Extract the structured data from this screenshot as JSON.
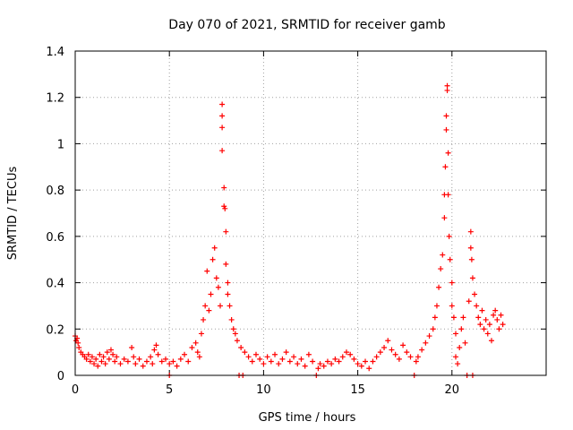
{
  "chart_data": {
    "type": "scatter",
    "title": "Day 070 of 2021, SRMTID for receiver gamb",
    "xlabel": "GPS time / hours",
    "ylabel": "SRMTID / TECUs",
    "xlim": [
      0,
      25
    ],
    "ylim": [
      0,
      1.4
    ],
    "x_ticks": [
      0,
      5,
      10,
      15,
      20
    ],
    "x_tick_labels": [
      "0",
      "5",
      "10",
      "15",
      "20"
    ],
    "y_ticks": [
      0,
      0.2,
      0.4,
      0.6,
      0.8,
      1,
      1.2,
      1.4
    ],
    "y_tick_labels": [
      "0",
      "0.2",
      "0.4",
      "0.6",
      "0.8",
      "1",
      "1.2",
      "1.4"
    ],
    "grid": true,
    "marker": "+",
    "color": "#ff0000",
    "series": [
      {
        "name": "SRMTID",
        "points": [
          [
            0.0,
            0.17
          ],
          [
            0.05,
            0.15
          ],
          [
            0.1,
            0.16
          ],
          [
            0.15,
            0.14
          ],
          [
            0.2,
            0.12
          ],
          [
            0.3,
            0.1
          ],
          [
            0.4,
            0.09
          ],
          [
            0.5,
            0.08
          ],
          [
            0.6,
            0.07
          ],
          [
            0.7,
            0.09
          ],
          [
            0.8,
            0.06
          ],
          [
            0.9,
            0.08
          ],
          [
            1.0,
            0.05
          ],
          [
            1.1,
            0.07
          ],
          [
            1.2,
            0.04
          ],
          [
            1.3,
            0.09
          ],
          [
            1.4,
            0.06
          ],
          [
            1.5,
            0.08
          ],
          [
            1.6,
            0.05
          ],
          [
            1.7,
            0.1
          ],
          [
            1.8,
            0.07
          ],
          [
            1.9,
            0.11
          ],
          [
            2.0,
            0.09
          ],
          [
            2.1,
            0.06
          ],
          [
            2.2,
            0.08
          ],
          [
            2.4,
            0.05
          ],
          [
            2.6,
            0.07
          ],
          [
            2.8,
            0.06
          ],
          [
            3.0,
            0.12
          ],
          [
            3.1,
            0.08
          ],
          [
            3.2,
            0.05
          ],
          [
            3.4,
            0.07
          ],
          [
            3.6,
            0.04
          ],
          [
            3.8,
            0.06
          ],
          [
            4.0,
            0.08
          ],
          [
            4.1,
            0.05
          ],
          [
            4.2,
            0.11
          ],
          [
            4.3,
            0.13
          ],
          [
            4.4,
            0.09
          ],
          [
            4.6,
            0.06
          ],
          [
            4.8,
            0.07
          ],
          [
            5.0,
            0.05
          ],
          [
            5.0,
            0.0
          ],
          [
            5.2,
            0.06
          ],
          [
            5.4,
            0.04
          ],
          [
            5.6,
            0.07
          ],
          [
            5.8,
            0.09
          ],
          [
            6.0,
            0.06
          ],
          [
            6.2,
            0.12
          ],
          [
            6.4,
            0.14
          ],
          [
            6.5,
            0.1
          ],
          [
            6.6,
            0.08
          ],
          [
            6.7,
            0.18
          ],
          [
            6.8,
            0.24
          ],
          [
            6.9,
            0.3
          ],
          [
            7.0,
            0.45
          ],
          [
            7.1,
            0.28
          ],
          [
            7.2,
            0.35
          ],
          [
            7.3,
            0.5
          ],
          [
            7.4,
            0.55
          ],
          [
            7.5,
            0.42
          ],
          [
            7.6,
            0.38
          ],
          [
            7.7,
            0.3
          ],
          [
            7.8,
            1.17
          ],
          [
            7.8,
            1.12
          ],
          [
            7.8,
            1.07
          ],
          [
            7.8,
            0.97
          ],
          [
            7.9,
            0.81
          ],
          [
            7.9,
            0.73
          ],
          [
            7.95,
            0.72
          ],
          [
            8.0,
            0.62
          ],
          [
            8.0,
            0.48
          ],
          [
            8.1,
            0.4
          ],
          [
            8.1,
            0.35
          ],
          [
            8.2,
            0.3
          ],
          [
            8.3,
            0.24
          ],
          [
            8.4,
            0.2
          ],
          [
            8.5,
            0.18
          ],
          [
            8.6,
            0.15
          ],
          [
            8.7,
            0.0
          ],
          [
            8.8,
            0.12
          ],
          [
            8.9,
            0.0
          ],
          [
            9.0,
            0.1
          ],
          [
            9.2,
            0.08
          ],
          [
            9.4,
            0.06
          ],
          [
            9.6,
            0.09
          ],
          [
            9.8,
            0.07
          ],
          [
            10.0,
            0.05
          ],
          [
            10.2,
            0.08
          ],
          [
            10.4,
            0.06
          ],
          [
            10.6,
            0.09
          ],
          [
            10.8,
            0.05
          ],
          [
            11.0,
            0.07
          ],
          [
            11.2,
            0.1
          ],
          [
            11.4,
            0.06
          ],
          [
            11.6,
            0.08
          ],
          [
            11.8,
            0.05
          ],
          [
            12.0,
            0.07
          ],
          [
            12.2,
            0.04
          ],
          [
            12.4,
            0.09
          ],
          [
            12.6,
            0.06
          ],
          [
            12.8,
            0.0
          ],
          [
            12.9,
            0.03
          ],
          [
            13.0,
            0.05
          ],
          [
            13.2,
            0.04
          ],
          [
            13.4,
            0.06
          ],
          [
            13.6,
            0.05
          ],
          [
            13.8,
            0.07
          ],
          [
            14.0,
            0.06
          ],
          [
            14.2,
            0.08
          ],
          [
            14.4,
            0.1
          ],
          [
            14.6,
            0.09
          ],
          [
            14.8,
            0.07
          ],
          [
            15.0,
            0.05
          ],
          [
            15.2,
            0.04
          ],
          [
            15.4,
            0.06
          ],
          [
            15.6,
            0.03
          ],
          [
            15.8,
            0.06
          ],
          [
            16.0,
            0.08
          ],
          [
            16.2,
            0.1
          ],
          [
            16.4,
            0.12
          ],
          [
            16.6,
            0.15
          ],
          [
            16.8,
            0.11
          ],
          [
            17.0,
            0.09
          ],
          [
            17.2,
            0.07
          ],
          [
            17.4,
            0.13
          ],
          [
            17.6,
            0.1
          ],
          [
            17.8,
            0.08
          ],
          [
            18.0,
            0.0
          ],
          [
            18.1,
            0.06
          ],
          [
            18.2,
            0.08
          ],
          [
            18.4,
            0.11
          ],
          [
            18.6,
            0.14
          ],
          [
            18.8,
            0.17
          ],
          [
            19.0,
            0.2
          ],
          [
            19.1,
            0.25
          ],
          [
            19.2,
            0.3
          ],
          [
            19.3,
            0.38
          ],
          [
            19.4,
            0.46
          ],
          [
            19.5,
            0.52
          ],
          [
            19.6,
            0.68
          ],
          [
            19.6,
            0.78
          ],
          [
            19.65,
            0.9
          ],
          [
            19.7,
            1.06
          ],
          [
            19.7,
            1.12
          ],
          [
            19.75,
            1.23
          ],
          [
            19.75,
            1.25
          ],
          [
            19.8,
            0.96
          ],
          [
            19.8,
            0.78
          ],
          [
            19.85,
            0.6
          ],
          [
            19.9,
            0.5
          ],
          [
            20.0,
            0.4
          ],
          [
            20.0,
            0.3
          ],
          [
            20.1,
            0.25
          ],
          [
            20.2,
            0.18
          ],
          [
            20.2,
            0.08
          ],
          [
            20.3,
            0.05
          ],
          [
            20.4,
            0.12
          ],
          [
            20.5,
            0.2
          ],
          [
            20.6,
            0.25
          ],
          [
            20.7,
            0.14
          ],
          [
            20.8,
            0.0
          ],
          [
            20.9,
            0.32
          ],
          [
            21.0,
            0.62
          ],
          [
            21.0,
            0.55
          ],
          [
            21.05,
            0.5
          ],
          [
            21.1,
            0.0
          ],
          [
            21.1,
            0.42
          ],
          [
            21.2,
            0.35
          ],
          [
            21.3,
            0.3
          ],
          [
            21.4,
            0.25
          ],
          [
            21.5,
            0.22
          ],
          [
            21.6,
            0.28
          ],
          [
            21.7,
            0.2
          ],
          [
            21.8,
            0.24
          ],
          [
            21.9,
            0.18
          ],
          [
            22.0,
            0.22
          ],
          [
            22.1,
            0.15
          ],
          [
            22.2,
            0.26
          ],
          [
            22.3,
            0.28
          ],
          [
            22.4,
            0.24
          ],
          [
            22.5,
            0.2
          ],
          [
            22.6,
            0.26
          ],
          [
            22.7,
            0.22
          ]
        ]
      }
    ]
  }
}
